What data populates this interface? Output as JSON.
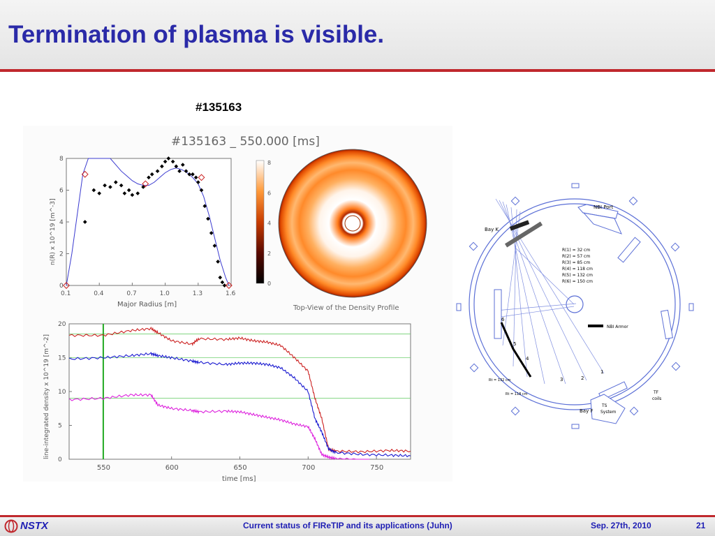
{
  "slide": {
    "title": "Termination of plasma is visible.",
    "shot_label": "#135163"
  },
  "figure": {
    "header": "#135163 _ 550.000 [ms]",
    "topview_caption": "Top-View of the Density Profile"
  },
  "chart_data": [
    {
      "type": "scatter",
      "title": "",
      "xlabel": "Major Radius [m]",
      "ylabel": "n(R) x 10^19 [m^-3]",
      "xlim": [
        0.1,
        1.6
      ],
      "ylim": [
        0,
        8
      ],
      "xticks": [
        "0.1",
        "0.4",
        "0.7",
        "1.0",
        "1.3",
        "1.6"
      ],
      "yticks": [
        "0",
        "2",
        "4",
        "6",
        "8"
      ],
      "series": [
        {
          "kind": "points",
          "color": "#000000",
          "x": [
            0.27,
            0.35,
            0.4,
            0.45,
            0.5,
            0.55,
            0.6,
            0.63,
            0.67,
            0.7,
            0.75,
            0.8,
            0.85,
            0.88,
            0.93,
            0.97,
            1.0,
            1.03,
            1.07,
            1.1,
            1.13,
            1.16,
            1.19,
            1.22,
            1.25,
            1.28,
            1.3,
            1.33,
            1.36,
            1.39,
            1.42,
            1.45,
            1.48,
            1.5,
            1.52,
            1.54
          ],
          "y": [
            4.0,
            6.0,
            5.8,
            6.3,
            6.2,
            6.5,
            6.3,
            5.8,
            6.0,
            5.7,
            5.8,
            6.2,
            6.8,
            7.0,
            7.2,
            7.5,
            7.8,
            8.0,
            7.8,
            7.5,
            7.2,
            7.6,
            7.2,
            7.0,
            7.0,
            6.8,
            6.5,
            6.0,
            5.0,
            4.2,
            3.3,
            2.5,
            1.5,
            0.5,
            0.2,
            0.0
          ]
        },
        {
          "kind": "fit",
          "color": "#3b3bd0",
          "x": [
            0.1,
            0.15,
            0.2,
            0.25,
            0.3,
            0.35,
            0.4,
            0.45,
            0.5,
            0.55,
            0.6,
            0.65,
            0.7,
            0.75,
            0.8,
            0.85,
            0.9,
            0.95,
            1.0,
            1.05,
            1.1,
            1.15,
            1.2,
            1.25,
            1.3,
            1.35,
            1.4,
            1.45,
            1.5,
            1.55,
            1.58
          ],
          "y": [
            0,
            2.0,
            4.5,
            7.0,
            8.6,
            9.0,
            8.9,
            8.5,
            8.0,
            7.6,
            7.2,
            6.9,
            6.6,
            6.4,
            6.3,
            6.3,
            6.5,
            6.8,
            7.1,
            7.3,
            7.4,
            7.3,
            7.1,
            6.8,
            6.4,
            5.6,
            4.4,
            3.0,
            1.6,
            0.5,
            0
          ]
        },
        {
          "kind": "markers",
          "color": "#cc2222",
          "x": [
            0.1,
            0.27,
            0.82,
            1.33,
            1.58
          ],
          "y": [
            0,
            7.0,
            6.4,
            6.8,
            0
          ]
        }
      ]
    },
    {
      "type": "line",
      "title": "",
      "xlabel": "time [ms]",
      "ylabel": "line-integrated density x 10^19 [m^-2]",
      "xlim": [
        525,
        775
      ],
      "ylim": [
        0,
        20
      ],
      "xticks": [
        "550",
        "600",
        "650",
        "700",
        "750"
      ],
      "yticks": [
        "0",
        "5",
        "10",
        "15",
        "20"
      ],
      "hlines": [
        18.5,
        15,
        9
      ],
      "vline": 550,
      "series": [
        {
          "color": "#cc2222",
          "x": [
            525,
            550,
            570,
            585,
            590,
            600,
            615,
            620,
            640,
            650,
            660,
            670,
            680,
            690,
            700,
            705,
            710,
            715,
            720,
            740,
            760,
            775
          ],
          "y": [
            18.3,
            18.3,
            19.0,
            19.3,
            18.7,
            17.5,
            17.0,
            17.8,
            17.7,
            17.9,
            17.5,
            17.3,
            16.8,
            15.0,
            13.0,
            9.0,
            6.0,
            1.5,
            1.2,
            1.1,
            1.3,
            1.2
          ]
        },
        {
          "color": "#1a1ad0",
          "x": [
            525,
            550,
            570,
            585,
            590,
            600,
            615,
            620,
            640,
            650,
            660,
            670,
            680,
            690,
            700,
            705,
            710,
            715,
            720,
            740,
            760,
            775
          ],
          "y": [
            14.8,
            15.0,
            15.3,
            15.6,
            15.3,
            15.0,
            14.5,
            14.3,
            14.0,
            14.2,
            14.2,
            14.0,
            13.5,
            12.0,
            10.0,
            6.0,
            4.0,
            1.5,
            1.0,
            0.7,
            0.6,
            0.5
          ]
        },
        {
          "color": "#dd22dd",
          "x": [
            525,
            550,
            570,
            585,
            590,
            600,
            615,
            620,
            640,
            650,
            660,
            670,
            680,
            690,
            700,
            705,
            710,
            715,
            720,
            740,
            745
          ],
          "y": [
            8.8,
            9.0,
            9.5,
            9.5,
            8.0,
            7.5,
            7.2,
            7.0,
            7.1,
            7.0,
            6.6,
            6.2,
            5.8,
            5.2,
            4.8,
            3.0,
            0.7,
            0.3,
            0.1,
            -0.2,
            -0.3
          ]
        }
      ]
    }
  ],
  "colorbar": {
    "ticks": [
      "8",
      "6",
      "4",
      "2",
      "0"
    ]
  },
  "tokamak": {
    "bay_k": "Bay K",
    "nbi_port": "NBI Port",
    "radii": [
      "R(1) = 32 cm",
      "R(2) = 57 cm",
      "R(3) = 85 cm",
      "R(4) = 118 cm",
      "R(5) = 132 cm",
      "R(6) = 150 cm"
    ],
    "nbi_armor": "NBI Armor",
    "chord_numbers": [
      "1",
      "2",
      "3",
      "4",
      "5",
      "6"
    ],
    "rt_132": "Rt = 132 cm",
    "rt_118": "Rt = 118 cm",
    "bay_f": "Bay F",
    "ts_system": [
      "TS",
      "System"
    ],
    "tf_coils": [
      "TF",
      "coils"
    ]
  },
  "footer": {
    "logo_text": "NSTX",
    "center": "Current status of FIReTIP and its applications (Juhn)",
    "date": "Sep. 27th, 2010",
    "page": "21"
  }
}
